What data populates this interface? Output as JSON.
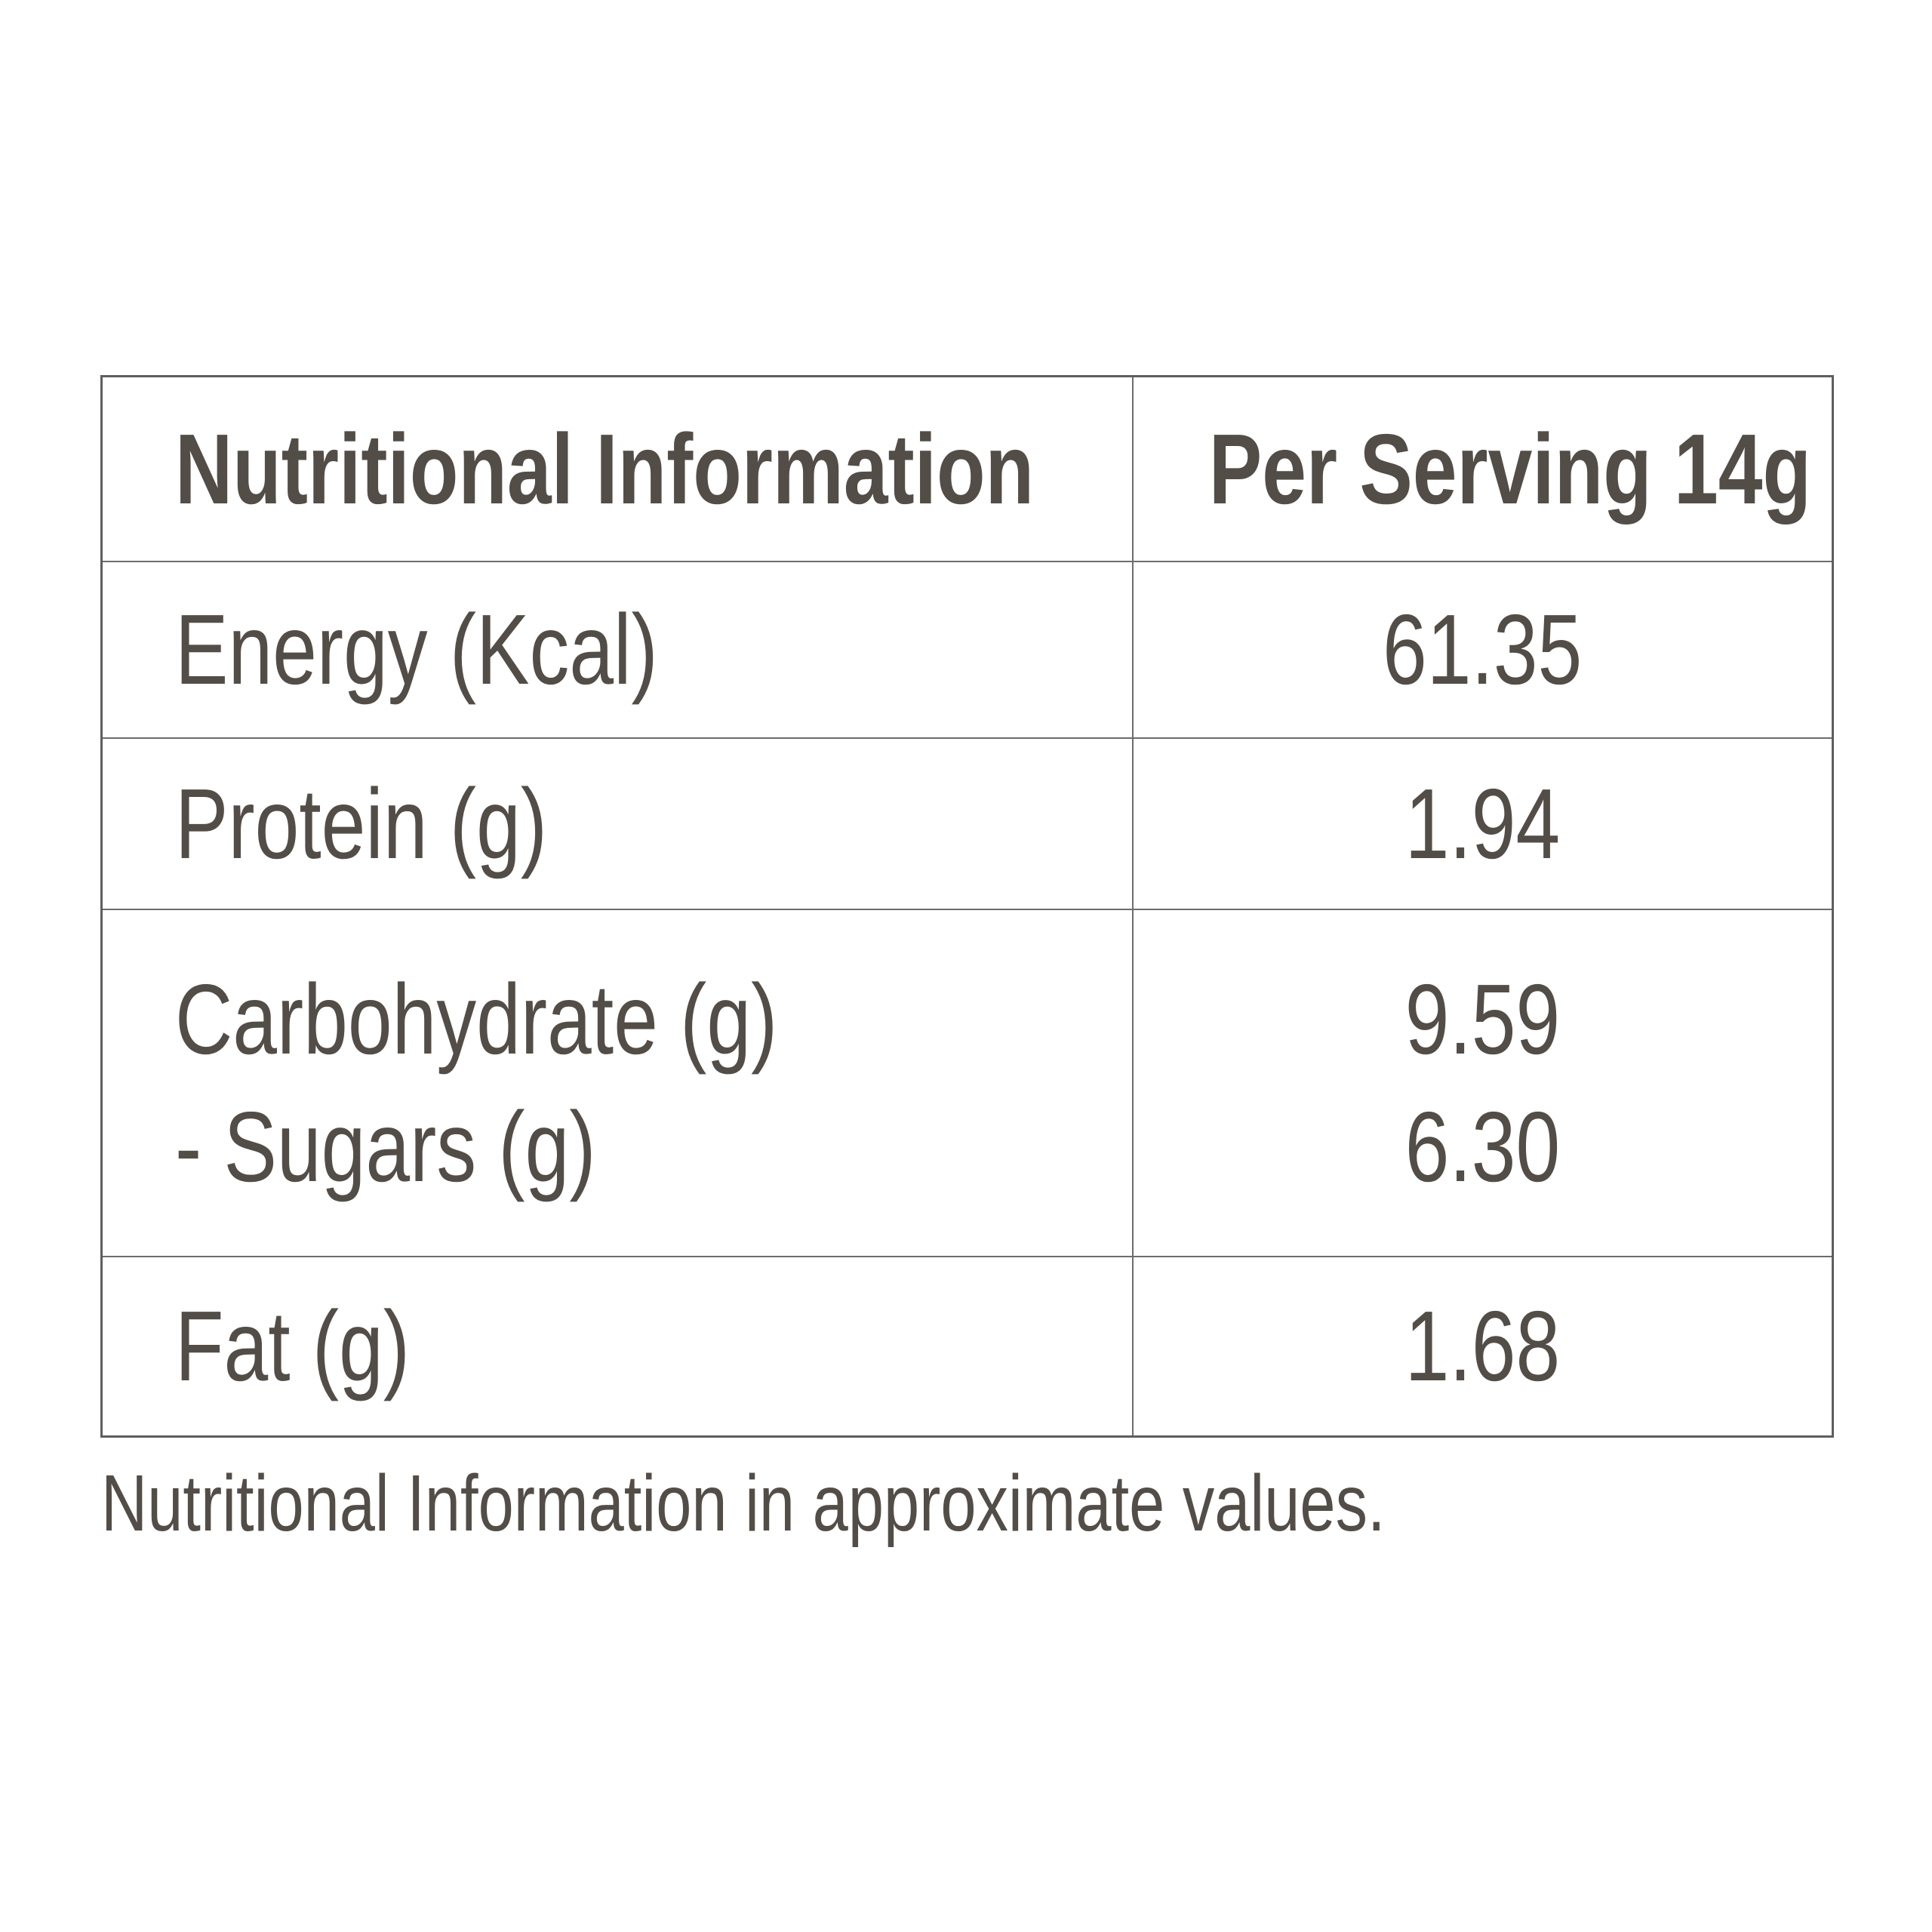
{
  "page": {
    "background_color": "#ffffff"
  },
  "colors": {
    "text": "#534d48",
    "table_border": "#6c6c6c"
  },
  "table": {
    "header": {
      "label": "Nutritional Information",
      "value": "Per Serving 14g"
    },
    "rows": [
      {
        "labels": [
          "Energy (Kcal)"
        ],
        "values": [
          "61.35"
        ]
      },
      {
        "labels": [
          "Protein (g)"
        ],
        "values": [
          "1.94"
        ]
      },
      {
        "labels": [
          "Carbohydrate (g)",
          "- Sugars (g)"
        ],
        "values": [
          "9.59",
          "6.30"
        ]
      },
      {
        "labels": [
          "Fat (g)"
        ],
        "values": [
          "1.68"
        ]
      }
    ]
  },
  "footnote": {
    "text": "Nutritional Information in approximate values."
  }
}
